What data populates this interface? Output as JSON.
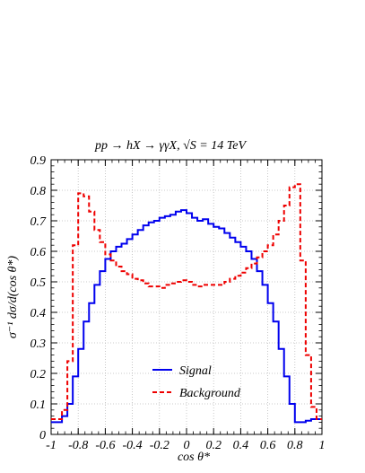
{
  "chart_data": {
    "type": "line",
    "title": "pp → hX → γγX, √S = 14 TeV",
    "xlabel": "cos θ*",
    "ylabel": "σ⁻¹ dσ/d(cos θ*)",
    "xlim": [
      -1,
      1
    ],
    "ylim": [
      0,
      0.9
    ],
    "xticks": [
      "-1",
      "-0.8",
      "-0.6",
      "-0.4",
      "-0.2",
      "0",
      "0.2",
      "0.4",
      "0.6",
      "0.8",
      "1"
    ],
    "yticks": [
      "0",
      "0.1",
      "0.2",
      "0.3",
      "0.4",
      "0.5",
      "0.6",
      "0.7",
      "0.8",
      "0.9"
    ],
    "grid": true,
    "legend_position": "bottom-center",
    "bin_edges": [
      -1,
      -0.96,
      -0.92,
      -0.88,
      -0.84,
      -0.8,
      -0.76,
      -0.72,
      -0.68,
      -0.64,
      -0.6,
      -0.56,
      -0.52,
      -0.48,
      -0.44,
      -0.4,
      -0.36,
      -0.32,
      -0.28,
      -0.24,
      -0.2,
      -0.16,
      -0.12,
      -0.08,
      -0.04,
      0,
      0.04,
      0.08,
      0.12,
      0.16,
      0.2,
      0.24,
      0.28,
      0.32,
      0.36,
      0.4,
      0.44,
      0.48,
      0.52,
      0.56,
      0.6,
      0.64,
      0.68,
      0.72,
      0.76,
      0.8,
      0.84,
      0.88,
      0.92,
      0.96,
      1
    ],
    "series": [
      {
        "name": "Signal",
        "color": "#0000ee",
        "style": "solid",
        "values": [
          0.04,
          0.04,
          0.06,
          0.1,
          0.19,
          0.28,
          0.37,
          0.43,
          0.49,
          0.535,
          0.575,
          0.6,
          0.615,
          0.625,
          0.64,
          0.655,
          0.67,
          0.685,
          0.695,
          0.7,
          0.71,
          0.715,
          0.72,
          0.73,
          0.735,
          0.725,
          0.71,
          0.7,
          0.705,
          0.69,
          0.68,
          0.675,
          0.66,
          0.645,
          0.63,
          0.615,
          0.6,
          0.575,
          0.535,
          0.49,
          0.43,
          0.37,
          0.28,
          0.19,
          0.1,
          0.04,
          0.04,
          0.045,
          0.05,
          0.05
        ]
      },
      {
        "name": "Background",
        "color": "#ee0000",
        "style": "dashed",
        "values": [
          0.05,
          0.05,
          0.08,
          0.24,
          0.62,
          0.79,
          0.78,
          0.73,
          0.67,
          0.63,
          0.59,
          0.57,
          0.55,
          0.535,
          0.525,
          0.51,
          0.505,
          0.495,
          0.485,
          0.485,
          0.48,
          0.49,
          0.495,
          0.5,
          0.505,
          0.5,
          0.49,
          0.485,
          0.49,
          0.49,
          0.49,
          0.49,
          0.5,
          0.51,
          0.52,
          0.53,
          0.545,
          0.56,
          0.58,
          0.6,
          0.62,
          0.655,
          0.7,
          0.75,
          0.81,
          0.82,
          0.57,
          0.26,
          0.09,
          0.05
        ]
      }
    ]
  }
}
